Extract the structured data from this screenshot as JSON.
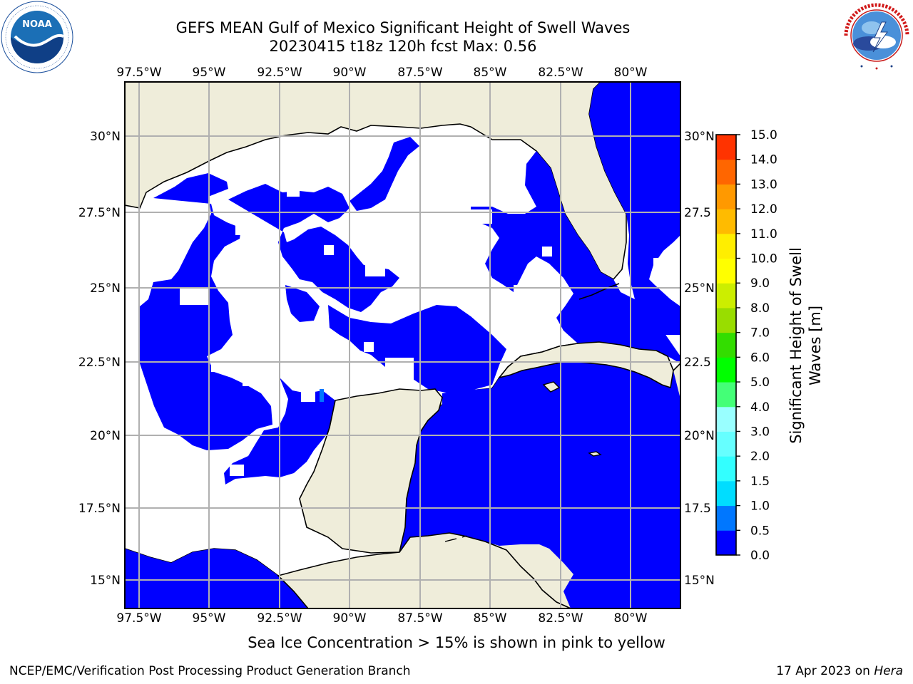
{
  "title_line1": "GEFS MEAN Gulf of Mexico Significant Height of Swell Waves",
  "title_line2": "20230415 t18z 120h fcst   Max: 0.56",
  "logos": {
    "left": {
      "icon": "noaa-logo",
      "ring_text": "NATIONAL OCEANIC AND ATMOSPHERIC ADMINISTRATION · U.S. DEPARTMENT OF COMMERCE",
      "center_text": "NOAA"
    },
    "right": {
      "icon": "nws-logo",
      "ring_text": "NATIONAL WEATHER SERVICE"
    }
  },
  "map": {
    "lon_ticks": [
      "97.5°W",
      "95°W",
      "92.5°W",
      "90°W",
      "87.5°W",
      "85°W",
      "82.5°W",
      "80°W"
    ],
    "lat_ticks_left": [
      "30°N",
      "27.5°N",
      "25°N",
      "22.5°N",
      "20°N",
      "17.5°N",
      "15°N"
    ],
    "lat_ticks_right": [
      "30°N",
      "27.5",
      "25°N",
      "22.5",
      "20°N",
      "17.5",
      "15°N"
    ],
    "colors": {
      "land": "#efedda",
      "water_zero": "#0000ff",
      "grid": "#b0b0b0",
      "no_data": "#ffffff"
    },
    "legend_note": "Sea Ice Concentration > 15% is shown in pink to yellow"
  },
  "colorbar": {
    "label_line1": "Significant Height of Swell",
    "label_line2": "Waves [m]",
    "tick_labels": [
      "0.0",
      "0.5",
      "1.0",
      "1.5",
      "2.0",
      "3.0",
      "4.0",
      "5.0",
      "6.0",
      "7.0",
      "8.0",
      "9.0",
      "10.0",
      "11.0",
      "12.0",
      "13.0",
      "14.0",
      "15.0"
    ],
    "colors": [
      "#0000ff",
      "#0077ff",
      "#00ddff",
      "#33ffff",
      "#66ffff",
      "#99ffff",
      "#44ff77",
      "#00ff00",
      "#33dd00",
      "#99dd00",
      "#ccee00",
      "#ffff00",
      "#ffee00",
      "#ffbb00",
      "#ff9900",
      "#ff6600",
      "#ff3300",
      "#ff0000"
    ]
  },
  "footer_left": "NCEP/EMC/Verification Post Processing Product Generation Branch",
  "footer_right_date": "17 Apr 2023 on ",
  "footer_right_host": "Hera"
}
